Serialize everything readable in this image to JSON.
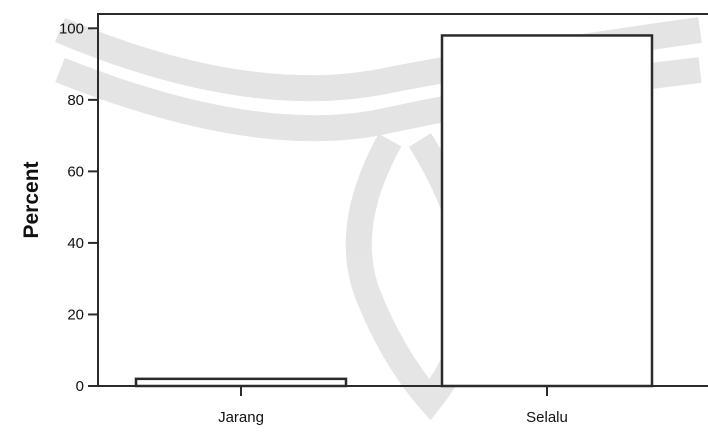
{
  "chart_data": {
    "type": "bar",
    "title": "",
    "xlabel": "",
    "ylabel": "Percent",
    "categories": [
      "Jarang",
      "Selalu"
    ],
    "values": [
      2,
      98
    ],
    "ylim": [
      0,
      104
    ],
    "yticks": [
      0,
      20,
      40,
      60,
      80,
      100
    ],
    "ytick_labels": [
      "0",
      "20",
      "40",
      "60",
      "80",
      "100"
    ],
    "grid": false,
    "legend": "none",
    "colors": {
      "bar_fill": "#ffffff",
      "bar_stroke": "#2b2b2b",
      "axis": "#2b2b2b",
      "watermark": "#d9d9d9"
    }
  }
}
